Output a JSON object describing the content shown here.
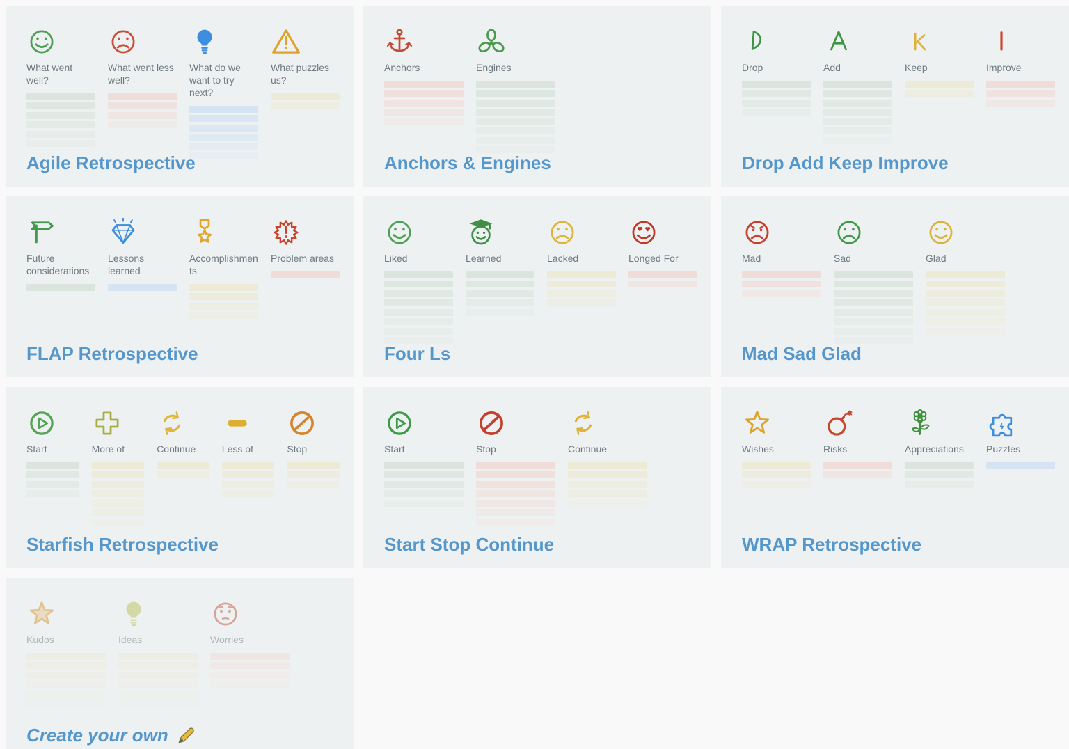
{
  "page": {
    "background": "#f8f9f8",
    "card_background": "#eef1f1",
    "title_color": "#5697cb",
    "label_color": "#6f7a83"
  },
  "line_colors": {
    "green": "#dbe5de",
    "red": "#f0dcd8",
    "blue": "#d5e3f2",
    "yellow": "#edead6"
  },
  "templates": [
    {
      "id": "agile-retrospective",
      "title": "Agile Retrospective",
      "columns": [
        {
          "label": "What went well?",
          "icon": "smiley-happy-icon",
          "icon_color": "#4e9e54",
          "line_color": "green",
          "lines": 6
        },
        {
          "label": "What went less well?",
          "icon": "smiley-sad-icon",
          "icon_color": "#c7503a",
          "line_color": "red",
          "lines": 4
        },
        {
          "label": "What do we want to try next?",
          "icon": "lightbulb-icon",
          "icon_color": "#3d8ede",
          "line_color": "blue",
          "lines": 6
        },
        {
          "label": "What puzzles us?",
          "icon": "warning-triangle-icon",
          "icon_color": "#dfa32b",
          "line_color": "yellow",
          "lines": 2
        }
      ]
    },
    {
      "id": "anchors-engines",
      "title": "Anchors & Engines",
      "columns": [
        {
          "label": "Anchors",
          "icon": "anchor-icon",
          "icon_color": "#c24b32",
          "line_color": "red",
          "lines": 5
        },
        {
          "label": "Engines",
          "icon": "propeller-icon",
          "icon_color": "#4a9a4f",
          "line_color": "green",
          "lines": 8
        }
      ]
    },
    {
      "id": "drop-add-keep-improve",
      "title": "Drop Add Keep Improve",
      "columns": [
        {
          "label": "Drop",
          "icon": "letter-d-icon",
          "icon_color": "#3f9346",
          "line_color": "green",
          "lines": 4
        },
        {
          "label": "Add",
          "icon": "letter-a-icon",
          "icon_color": "#3f9346",
          "line_color": "green",
          "lines": 7
        },
        {
          "label": "Keep",
          "icon": "letter-k-icon",
          "icon_color": "#ddb33c",
          "line_color": "yellow",
          "lines": 2
        },
        {
          "label": "Improve",
          "icon": "letter-i-icon",
          "icon_color": "#cc4631",
          "line_color": "red",
          "lines": 3
        }
      ]
    },
    {
      "id": "flap-retrospective",
      "title": "FLAP Retrospective",
      "columns": [
        {
          "label": "Future considerations",
          "icon": "signpost-icon",
          "icon_color": "#46984c",
          "line_color": "green",
          "lines": 1
        },
        {
          "label": "Lessons learned",
          "icon": "gem-icon",
          "icon_color": "#3d8ede",
          "line_color": "blue",
          "lines": 1
        },
        {
          "label": "Accomplishments",
          "icon": "medal-icon",
          "icon_color": "#e0a62e",
          "line_color": "yellow",
          "lines": 4
        },
        {
          "label": "Problem areas",
          "icon": "burst-exclamation-icon",
          "icon_color": "#c7452f",
          "line_color": "red",
          "lines": 1
        }
      ]
    },
    {
      "id": "four-ls",
      "title": "Four Ls",
      "columns": [
        {
          "label": "Liked",
          "icon": "smiley-happy-icon",
          "icon_color": "#4e9e54",
          "line_color": "green",
          "lines": 8
        },
        {
          "label": "Learned",
          "icon": "smiley-graduate-icon",
          "icon_color": "#3f8f45",
          "line_color": "green",
          "lines": 5
        },
        {
          "label": "Lacked",
          "icon": "smiley-sad-icon",
          "icon_color": "#dcb53e",
          "line_color": "yellow",
          "lines": 4
        },
        {
          "label": "Longed For",
          "icon": "smiley-heart-eyes-icon",
          "icon_color": "#c0392b",
          "line_color": "red",
          "lines": 2
        }
      ]
    },
    {
      "id": "mad-sad-glad",
      "title": "Mad Sad Glad",
      "columns": [
        {
          "label": "Mad",
          "icon": "smiley-angry-icon",
          "icon_color": "#c7402e",
          "line_color": "red",
          "lines": 3
        },
        {
          "label": "Sad",
          "icon": "smiley-sad-icon",
          "icon_color": "#43984a",
          "line_color": "green",
          "lines": 8
        },
        {
          "label": "Glad",
          "icon": "smiley-happy-icon",
          "icon_color": "#d9b33c",
          "line_color": "yellow",
          "lines": 7
        }
      ]
    },
    {
      "id": "starfish-retrospective",
      "title": "Starfish Retrospective",
      "columns": [
        {
          "label": "Start",
          "icon": "play-circle-icon",
          "icon_color": "#55a355",
          "line_color": "green",
          "lines": 4
        },
        {
          "label": "More of",
          "icon": "plus-icon",
          "icon_color": "#a8ae45",
          "line_color": "yellow",
          "lines": 7
        },
        {
          "label": "Continue",
          "icon": "recycle-arrows-icon",
          "icon_color": "#e0b73e",
          "line_color": "yellow",
          "lines": 2
        },
        {
          "label": "Less of",
          "icon": "dash-icon",
          "icon_color": "#dcaf2f",
          "line_color": "yellow",
          "lines": 4
        },
        {
          "label": "Stop",
          "icon": "no-entry-icon",
          "icon_color": "#d5852c",
          "line_color": "yellow",
          "lines": 3
        }
      ]
    },
    {
      "id": "start-stop-continue",
      "title": "Start Stop Continue",
      "columns": [
        {
          "label": "Start",
          "icon": "play-circle-icon",
          "icon_color": "#3f9a48",
          "line_color": "green",
          "lines": 5
        },
        {
          "label": "Stop",
          "icon": "no-entry-icon",
          "icon_color": "#c43f2c",
          "line_color": "red",
          "lines": 7
        },
        {
          "label": "Continue",
          "icon": "recycle-arrows-icon",
          "icon_color": "#ddb33c",
          "line_color": "yellow",
          "lines": 5
        }
      ]
    },
    {
      "id": "wrap-retrospective",
      "title": "WRAP Retrospective",
      "columns": [
        {
          "label": "Wishes",
          "icon": "star-icon",
          "icon_color": "#dfa32b",
          "line_color": "yellow",
          "lines": 3
        },
        {
          "label": "Risks",
          "icon": "bomb-icon",
          "icon_color": "#c54730",
          "line_color": "red",
          "lines": 2
        },
        {
          "label": "Appreciations",
          "icon": "flower-icon",
          "icon_color": "#41903f",
          "line_color": "green",
          "lines": 3
        },
        {
          "label": "Puzzles",
          "icon": "puzzle-icon",
          "icon_color": "#3d8ede",
          "line_color": "blue",
          "lines": 1
        }
      ]
    },
    {
      "id": "create-your-own",
      "title": "Create your own",
      "title_style": "italic",
      "title_icon": "pencil-icon",
      "faded": true,
      "columns": [
        {
          "label": "Kudos",
          "icon": "kudos-star-icon",
          "icon_color": "#d89434",
          "line_color": "yellow",
          "lines": 6
        },
        {
          "label": "Ideas",
          "icon": "lightbulb-icon",
          "icon_color": "#b9c35a",
          "line_color": "yellow",
          "lines": 6
        },
        {
          "label": "Worries",
          "icon": "smiley-worried-icon",
          "icon_color": "#c05a46",
          "line_color": "red",
          "lines": 4
        }
      ]
    }
  ]
}
